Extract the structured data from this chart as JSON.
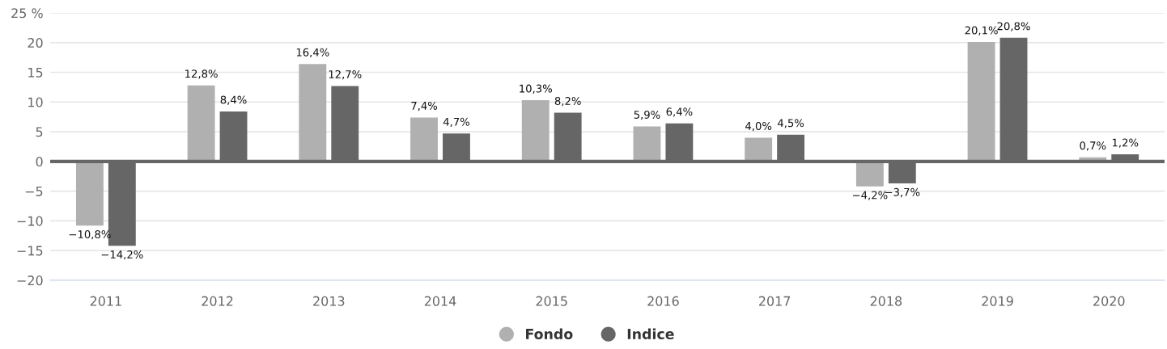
{
  "chart_data": {
    "type": "bar",
    "categories": [
      "2011",
      "2012",
      "2013",
      "2014",
      "2015",
      "2016",
      "2017",
      "2018",
      "2019",
      "2020"
    ],
    "series": [
      {
        "name": "Fondo",
        "color": "#b0b0b0",
        "values": [
          -10.8,
          12.8,
          16.4,
          7.4,
          10.3,
          5.9,
          4.0,
          -4.2,
          20.1,
          0.7
        ],
        "value_labels": [
          "−10,8%",
          "12,8%",
          "16,4%",
          "7,4%",
          "10,3%",
          "5,9%",
          "4,0%",
          "−4,2%",
          "20,1%",
          "0,7%"
        ]
      },
      {
        "name": "Indice",
        "color": "#666666",
        "values": [
          -14.2,
          8.4,
          12.7,
          4.7,
          8.2,
          6.4,
          4.5,
          -3.7,
          20.8,
          1.2
        ],
        "value_labels": [
          "−14,2%",
          "8,4%",
          "12,7%",
          "4,7%",
          "8,2%",
          "6,4%",
          "4,5%",
          "−3,7%",
          "20,8%",
          "1,2%"
        ]
      }
    ],
    "ylim": [
      -20,
      25
    ],
    "yticks": [
      {
        "value": -20,
        "label": "−20"
      },
      {
        "value": -15,
        "label": "−15"
      },
      {
        "value": -10,
        "label": "−10"
      },
      {
        "value": -5,
        "label": "−5"
      },
      0,
      5,
      10,
      15,
      20,
      {
        "value": 25,
        "label": "25 %"
      }
    ],
    "ref_lines": [
      {
        "axis": "y",
        "value": 0,
        "color": "#666666"
      }
    ],
    "grid": "y",
    "legend": "bottom"
  }
}
